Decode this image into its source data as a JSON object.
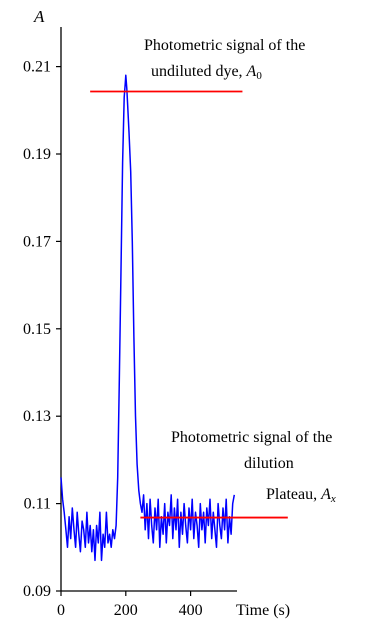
{
  "chart_data": {
    "type": "line",
    "ylabel": "A",
    "xlabel": "Time (s)",
    "xlim": [
      0,
      540
    ],
    "ylim": [
      0.09,
      0.215
    ],
    "xticks": [
      0,
      200,
      400
    ],
    "yticks": [
      0.09,
      0.11,
      0.13,
      0.15,
      0.17,
      0.19,
      0.21
    ],
    "ytick_labels": [
      "0.09",
      "0.11",
      "0.13",
      "0.15",
      "0.17",
      "0.19",
      "0.21"
    ],
    "grid": false,
    "series": [
      {
        "color": "#0000ff",
        "x": [
          0,
          5,
          10,
          15,
          20,
          25,
          30,
          35,
          40,
          45,
          50,
          55,
          60,
          65,
          70,
          75,
          80,
          85,
          90,
          95,
          100,
          105,
          110,
          115,
          120,
          125,
          130,
          135,
          140,
          145,
          150,
          155,
          160,
          165,
          170,
          175,
          180,
          185,
          190,
          195,
          198,
          200,
          203,
          206,
          210,
          215,
          220,
          225,
          230,
          235,
          240,
          245,
          250,
          255,
          260,
          265,
          270,
          275,
          280,
          285,
          290,
          295,
          300,
          305,
          310,
          315,
          320,
          325,
          330,
          335,
          340,
          345,
          350,
          355,
          360,
          365,
          370,
          375,
          380,
          385,
          390,
          395,
          400,
          405,
          410,
          415,
          420,
          425,
          430,
          435,
          440,
          445,
          450,
          455,
          460,
          465,
          470,
          475,
          480,
          485,
          490,
          495,
          500,
          505,
          510,
          515,
          520,
          525,
          530,
          535
        ],
        "values": [
          0.116,
          0.111,
          0.108,
          0.104,
          0.1,
          0.107,
          0.102,
          0.109,
          0.104,
          0.1,
          0.108,
          0.103,
          0.099,
          0.106,
          0.104,
          0.1,
          0.108,
          0.101,
          0.105,
          0.099,
          0.104,
          0.097,
          0.105,
          0.101,
          0.108,
          0.097,
          0.103,
          0.1,
          0.108,
          0.101,
          0.103,
          0.1,
          0.104,
          0.102,
          0.105,
          0.116,
          0.138,
          0.162,
          0.188,
          0.203,
          0.206,
          0.208,
          0.205,
          0.201,
          0.195,
          0.186,
          0.17,
          0.148,
          0.13,
          0.119,
          0.113,
          0.11,
          0.108,
          0.112,
          0.104,
          0.11,
          0.102,
          0.111,
          0.105,
          0.101,
          0.109,
          0.104,
          0.111,
          0.1,
          0.107,
          0.103,
          0.11,
          0.101,
          0.108,
          0.105,
          0.112,
          0.102,
          0.109,
          0.104,
          0.111,
          0.1,
          0.108,
          0.103,
          0.11,
          0.105,
          0.101,
          0.109,
          0.104,
          0.111,
          0.102,
          0.108,
          0.105,
          0.1,
          0.11,
          0.104,
          0.108,
          0.101,
          0.109,
          0.105,
          0.111,
          0.102,
          0.108,
          0.104,
          0.1,
          0.11,
          0.105,
          0.102,
          0.109,
          0.104,
          0.111,
          0.101,
          0.107,
          0.103,
          0.11,
          0.112
        ]
      }
    ],
    "reference_lines": [
      {
        "y": 0.2043,
        "x_start": 90,
        "x_end": 560,
        "color": "#ff0000"
      },
      {
        "y": 0.1068,
        "x_start": 245,
        "x_end": 700,
        "color": "#ff0000"
      }
    ],
    "annotations": [
      {
        "lines": [
          "Photometric signal of the",
          "undiluted dye, A0"
        ]
      },
      {
        "lines": [
          "Photometric signal of the",
          "dilution"
        ]
      },
      {
        "lines": [
          "Plateau, Ax"
        ]
      }
    ]
  }
}
